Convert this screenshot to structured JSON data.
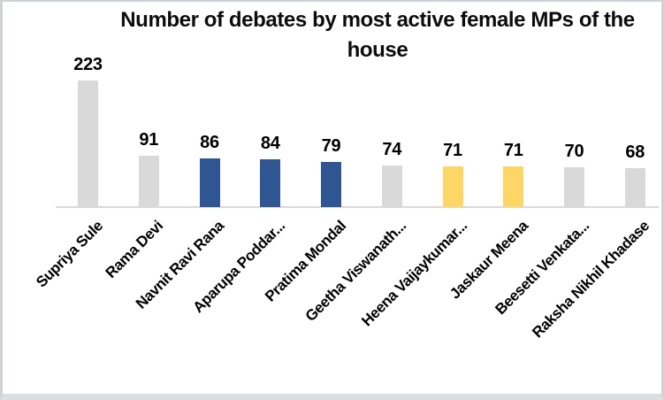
{
  "window": {
    "background": "#FFFFFF",
    "border_color": "#CED1D5"
  },
  "chart_data": {
    "type": "bar",
    "title": "Number of debates by most active female MPs of the house",
    "categories": [
      "Supriya Sule",
      "Rama Devi",
      "Navnit Ravi Rana",
      "Aparupa Poddar...",
      "Pratima Mondal",
      "Geetha Viswanath...",
      "Heena Vaijaykumar...",
      "Jaskaur Meena",
      "Beesetti Venkata...",
      "Raksha Nikhil Khadase"
    ],
    "values": [
      223,
      91,
      86,
      84,
      79,
      74,
      71,
      71,
      70,
      68
    ],
    "bar_colors": [
      "#D9D9D9",
      "#D9D9D9",
      "#2F5693",
      "#2F5693",
      "#2F5693",
      "#D9D9D9",
      "#FDD666",
      "#FDD666",
      "#D9D9D9",
      "#D9D9D9"
    ],
    "colors": {
      "gray_bar": "#D9D9D9",
      "blue_bar": "#2F5693",
      "yellow_bar": "#FDD666",
      "axis_line": "#D9D9D9",
      "text": "#000000"
    },
    "data_labels_shown": true,
    "legend": "none",
    "gridlines": false,
    "y_axis_shown": false,
    "x_label_rotation_deg": 45,
    "ylim": [
      0,
      240
    ]
  }
}
